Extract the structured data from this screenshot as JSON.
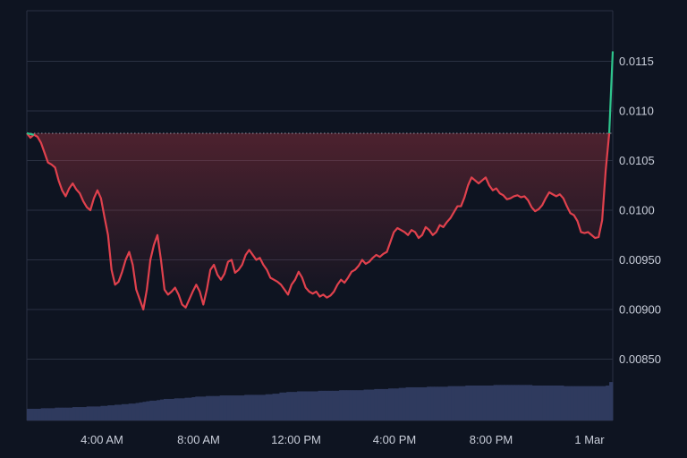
{
  "chart_data": {
    "type": "line",
    "title": "",
    "xlabel": "",
    "ylabel": "",
    "ylim": [
      0.0081,
      0.0119
    ],
    "x_ticks": [
      "4:00 AM",
      "8:00 AM",
      "12:00 PM",
      "4:00 PM",
      "8:00 PM",
      "1 Mar"
    ],
    "y_ticks": [
      "0.00850",
      "0.00900",
      "0.00950",
      "0.0100",
      "0.0105",
      "0.0110",
      "0.0115"
    ],
    "grid": true,
    "reference_line": 0.010775,
    "colors": {
      "background": "#0e1421",
      "grid": "#2a3142",
      "line_down": "#e0414d",
      "line_up": "#2ec48c",
      "fill": "#e0414d",
      "volume": "#2f3a5e",
      "reference": "#b0b6c4",
      "tick_text": "#c9ceda"
    },
    "series": [
      {
        "values": [
          0.010775,
          0.01073,
          0.01076,
          0.01074,
          0.01068,
          0.01058,
          0.01048,
          0.01046,
          0.01043,
          0.0103,
          0.0102,
          0.01014,
          0.01022,
          0.01027,
          0.01021,
          0.01017,
          0.01009,
          0.01003,
          0.01,
          0.01012,
          0.0102,
          0.01012,
          0.00993,
          0.00975,
          0.0094,
          0.00925,
          0.00928,
          0.00938,
          0.0095,
          0.00958,
          0.00945,
          0.0092,
          0.0091,
          0.009,
          0.0092,
          0.0095,
          0.00965,
          0.00975,
          0.0095,
          0.0092,
          0.00915,
          0.00918,
          0.00922,
          0.00915,
          0.00905,
          0.00902,
          0.0091,
          0.00918,
          0.00925,
          0.00918,
          0.00905,
          0.0092,
          0.0094,
          0.00945,
          0.00935,
          0.0093,
          0.00936,
          0.00948,
          0.0095,
          0.00937,
          0.0094,
          0.00945,
          0.00955,
          0.0096,
          0.00955,
          0.0095,
          0.00952,
          0.00945,
          0.0094,
          0.00932,
          0.0093,
          0.00928,
          0.00925,
          0.0092,
          0.00915,
          0.00925,
          0.0093,
          0.00938,
          0.00932,
          0.00922,
          0.00918,
          0.00916,
          0.00918,
          0.00913,
          0.00915,
          0.00912,
          0.00914,
          0.00918,
          0.00925,
          0.0093,
          0.00927,
          0.00932,
          0.00938,
          0.0094,
          0.00944,
          0.0095,
          0.00946,
          0.00948,
          0.00952,
          0.00955,
          0.00953,
          0.00956,
          0.00958,
          0.00968,
          0.00978,
          0.00982,
          0.0098,
          0.00978,
          0.00975,
          0.0098,
          0.00978,
          0.00972,
          0.00975,
          0.00983,
          0.0098,
          0.00975,
          0.00978,
          0.00985,
          0.00983,
          0.00988,
          0.00992,
          0.00998,
          0.01004,
          0.01004,
          0.01013,
          0.01025,
          0.01033,
          0.0103,
          0.01027,
          0.0103,
          0.01033,
          0.01025,
          0.0102,
          0.01022,
          0.01017,
          0.01015,
          0.01011,
          0.01012,
          0.01014,
          0.01015,
          0.01013,
          0.01014,
          0.0101,
          0.01003,
          0.00999,
          0.01001,
          0.01005,
          0.01012,
          0.01018,
          0.01016,
          0.01014,
          0.01016,
          0.01012,
          0.01004,
          0.00997,
          0.00995,
          0.00989,
          0.00978,
          0.00977,
          0.00978,
          0.00975,
          0.00972,
          0.00973,
          0.0099,
          0.0104,
          0.010775,
          0.0116
        ]
      }
    ],
    "volume": [
      0.2,
      0.2,
      0.2,
      0.2,
      0.21,
      0.21,
      0.21,
      0.21,
      0.22,
      0.22,
      0.22,
      0.22,
      0.22,
      0.23,
      0.23,
      0.23,
      0.23,
      0.24,
      0.24,
      0.24,
      0.24,
      0.25,
      0.25,
      0.26,
      0.26,
      0.27,
      0.27,
      0.28,
      0.28,
      0.29,
      0.29,
      0.3,
      0.31,
      0.32,
      0.33,
      0.34,
      0.34,
      0.35,
      0.36,
      0.37,
      0.37,
      0.37,
      0.38,
      0.38,
      0.38,
      0.39,
      0.39,
      0.4,
      0.41,
      0.41,
      0.41,
      0.42,
      0.42,
      0.42,
      0.42,
      0.43,
      0.43,
      0.43,
      0.43,
      0.43,
      0.43,
      0.43,
      0.44,
      0.44,
      0.44,
      0.44,
      0.44,
      0.44,
      0.45,
      0.45,
      0.46,
      0.46,
      0.48,
      0.48,
      0.49,
      0.49,
      0.49,
      0.5,
      0.5,
      0.5,
      0.5,
      0.5,
      0.5,
      0.51,
      0.51,
      0.51,
      0.51,
      0.51,
      0.51,
      0.52,
      0.52,
      0.52,
      0.52,
      0.52,
      0.52,
      0.52,
      0.53,
      0.53,
      0.53,
      0.54,
      0.54,
      0.54,
      0.54,
      0.55,
      0.55,
      0.55,
      0.56,
      0.56,
      0.57,
      0.57,
      0.57,
      0.57,
      0.57,
      0.57,
      0.58,
      0.58,
      0.58,
      0.58,
      0.58,
      0.58,
      0.59,
      0.59,
      0.59,
      0.59,
      0.59,
      0.6,
      0.6,
      0.6,
      0.6,
      0.6,
      0.6,
      0.6,
      0.6,
      0.61,
      0.61,
      0.61,
      0.61,
      0.61,
      0.61,
      0.61,
      0.61,
      0.61,
      0.61,
      0.61,
      0.6,
      0.6,
      0.6,
      0.6,
      0.6,
      0.6,
      0.6,
      0.6,
      0.6,
      0.59,
      0.59,
      0.59,
      0.59,
      0.59,
      0.59,
      0.59,
      0.59,
      0.59,
      0.59,
      0.59,
      0.59,
      0.6,
      0.66
    ]
  }
}
